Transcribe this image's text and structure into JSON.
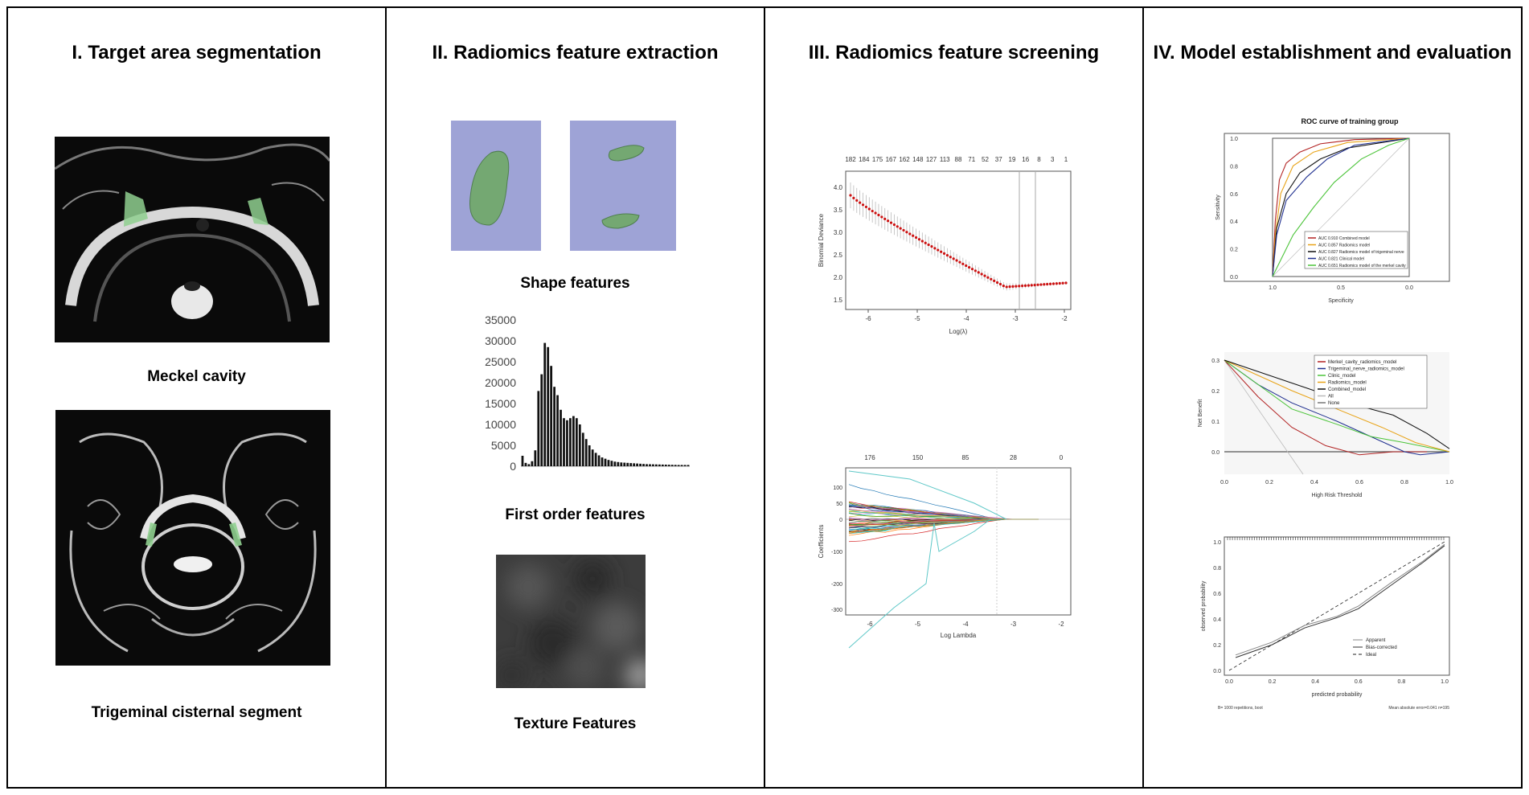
{
  "panels": [
    {
      "title": "I. Target area segmentation",
      "captions": [
        "Meckel cavity",
        "Trigeminal cisternal segment"
      ]
    },
    {
      "title": "II. Radiomics feature extraction",
      "captions": [
        "Shape features",
        "First order features",
        "Texture Features"
      ]
    },
    {
      "title": "III. Radiomics feature screening",
      "captions": []
    },
    {
      "title": "IV. Model establishment and evaluation",
      "captions": []
    }
  ],
  "histogram": {
    "yticks": [
      "35000",
      "30000",
      "25000",
      "20000",
      "15000",
      "10000",
      "5000",
      "0"
    ],
    "ymax": 35000,
    "values": [
      2500,
      800,
      500,
      1200,
      3800,
      18000,
      22000,
      29500,
      28500,
      24000,
      19000,
      17000,
      13500,
      11500,
      11000,
      11500,
      12000,
      11500,
      10000,
      8000,
      6500,
      5000,
      4000,
      3200,
      2600,
      2100,
      1800,
      1500,
      1300,
      1100,
      1000,
      900,
      850,
      800,
      750,
      700,
      650,
      600,
      550,
      500,
      480,
      460,
      440,
      420,
      400,
      380,
      360,
      340,
      320,
      300,
      300,
      300,
      300
    ]
  },
  "lasso_cv": {
    "top_ticks": [
      "182",
      "184",
      "175",
      "167",
      "162",
      "148",
      "127",
      "113",
      "88",
      "71",
      "52",
      "37",
      "19",
      "16",
      "8",
      "3",
      "1"
    ],
    "x_ticks": [
      "-6",
      "-5",
      "-4",
      "-3",
      "-2"
    ],
    "y_ticks": [
      "4.0",
      "3.5",
      "3.0",
      "2.5",
      "2.0",
      "1.5"
    ],
    "xlabel": "Log(λ)",
    "ylabel": "Binomial Deviance"
  },
  "lasso_coef": {
    "top_ticks": [
      "176",
      "150",
      "85",
      "28",
      "0"
    ],
    "x_ticks": [
      "-6",
      "-5",
      "-4",
      "-3",
      "-2"
    ],
    "y_ticks": [
      "100",
      "50",
      "0",
      "-100",
      "-200",
      "-300"
    ],
    "xlabel": "Log Lambda",
    "ylabel": "Coefficients"
  },
  "roc": {
    "title": "ROC curve of training group",
    "xlabel": "Specificity",
    "ylabel": "Sensitivity",
    "x_ticks": [
      "1.0",
      "0.5",
      "0.0"
    ],
    "y_ticks": [
      "1.0",
      "0.8",
      "0.6",
      "0.4",
      "0.2",
      "0.0"
    ],
    "legend": [
      {
        "label": "AUC 0.910 Combined model",
        "color": "#b22222"
      },
      {
        "label": "AUC 0.857 Radiomics model",
        "color": "#e8a317"
      },
      {
        "label": "AUC 0.827 Radiomics model of trigeminal nerve",
        "color": "#111111"
      },
      {
        "label": "AUC 0.821 Clinical model",
        "color": "#1f2f8f"
      },
      {
        "label": "AUC 0.651 Radiomics model of the merkel cavity",
        "color": "#4cc43a"
      }
    ]
  },
  "dca": {
    "xlabel": "High Risk Threshold",
    "ylabel": "Net Benefit",
    "x_ticks": [
      "0.0",
      "0.2",
      "0.4",
      "0.6",
      "0.8",
      "1.0"
    ],
    "y_ticks": [
      "0.3",
      "0.2",
      "0.1",
      "0.0"
    ],
    "legend": [
      {
        "label": "Merkel_cavity_radiomics_model",
        "color": "#b22222"
      },
      {
        "label": "Trigeminal_nerve_radiomics_model",
        "color": "#1f2f8f"
      },
      {
        "label": "Clinic_model",
        "color": "#4cc43a"
      },
      {
        "label": "Radiomics_model",
        "color": "#e8a317"
      },
      {
        "label": "Combined_model",
        "color": "#111111"
      },
      {
        "label": "All",
        "color": "#bbbbbb"
      },
      {
        "label": "None",
        "color": "#777777"
      }
    ]
  },
  "calib": {
    "xlabel": "predicted probability",
    "ylabel": "observed probability",
    "x_ticks": [
      "0.0",
      "0.2",
      "0.4",
      "0.6",
      "0.8",
      "1.0"
    ],
    "y_ticks": [
      "1.0",
      "0.8",
      "0.6",
      "0.4",
      "0.2",
      "0.0"
    ],
    "legend": [
      "Apparent",
      "Bias-corrected",
      "Ideal"
    ],
    "footer_left": "B= 1000 repetitions, boot",
    "footer_right": "Mean absolute error=0.041 n=195"
  },
  "colors": {
    "mri_green": "#8fcf8f",
    "shape_bg": "#9ea3d6",
    "shape_green": "#74a872",
    "cv_red": "#cc1111"
  }
}
